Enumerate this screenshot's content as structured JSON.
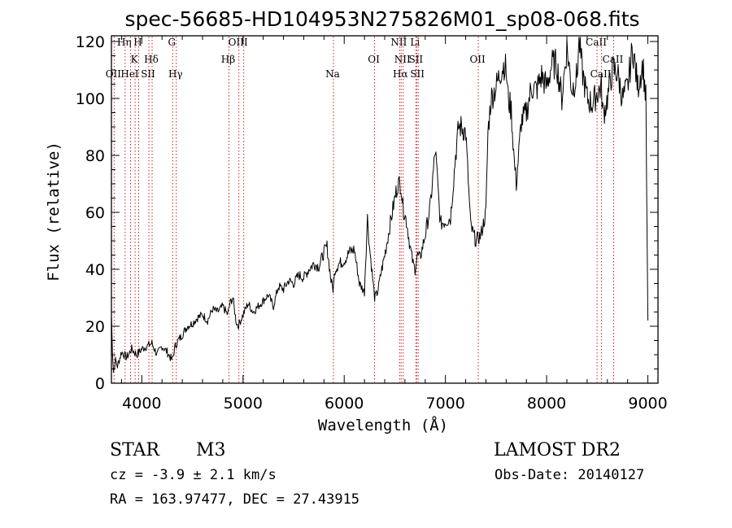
{
  "chart_data": {
    "type": "line",
    "title": "spec-56685-HD104953N275826M01_sp08-068.fits",
    "xlabel": "Wavelength (Å)",
    "ylabel": "Flux (relative)",
    "xlim": [
      3700,
      9100
    ],
    "ylim": [
      0,
      122
    ],
    "xticks": [
      4000,
      5000,
      6000,
      7000,
      8000,
      9000
    ],
    "yticks": [
      0,
      20,
      40,
      60,
      80,
      100,
      120
    ],
    "series": [
      {
        "name": "flux",
        "x": [
          3700,
          3710,
          3720,
          3740,
          3760,
          3800,
          3850,
          3900,
          3950,
          4000,
          4050,
          4100,
          4150,
          4200,
          4250,
          4300,
          4330,
          4360,
          4400,
          4450,
          4500,
          4550,
          4600,
          4650,
          4700,
          4750,
          4800,
          4850,
          4870,
          4900,
          4930,
          4950,
          5000,
          5050,
          5100,
          5150,
          5200,
          5250,
          5300,
          5350,
          5400,
          5450,
          5500,
          5550,
          5600,
          5650,
          5700,
          5750,
          5800,
          5830,
          5870,
          5890,
          5910,
          5950,
          6000,
          6050,
          6100,
          6150,
          6200,
          6210,
          6230,
          6250,
          6300,
          6330,
          6360,
          6400,
          6450,
          6500,
          6530,
          6560,
          6580,
          6620,
          6650,
          6680,
          6700,
          6720,
          6750,
          6800,
          6850,
          6900,
          6950,
          7000,
          7050,
          7100,
          7130,
          7160,
          7200,
          7250,
          7300,
          7350,
          7400,
          7420,
          7450,
          7500,
          7550,
          7580,
          7600,
          7620,
          7650,
          7680,
          7700,
          7750,
          7800,
          7850,
          7900,
          7950,
          8000,
          8050,
          8100,
          8150,
          8200,
          8250,
          8300,
          8320,
          8350,
          8400,
          8450,
          8500,
          8540,
          8560,
          8600,
          8650,
          8700,
          8750,
          8800,
          8850,
          8900,
          8950,
          8980,
          9000
        ],
        "values": [
          24,
          12,
          4,
          8,
          6,
          11,
          9,
          12,
          10,
          12,
          13,
          14,
          10,
          13,
          11,
          8,
          13,
          15,
          17,
          20,
          21,
          23,
          24,
          22,
          26,
          25,
          27,
          24,
          28,
          30,
          22,
          20,
          24,
          28,
          25,
          27,
          29,
          31,
          27,
          34,
          33,
          36,
          35,
          38,
          37,
          40,
          42,
          41,
          46,
          48,
          36,
          33,
          40,
          42,
          43,
          46,
          47,
          35,
          32,
          42,
          58,
          48,
          30,
          32,
          38,
          45,
          55,
          65,
          70,
          70,
          62,
          56,
          48,
          42,
          40,
          45,
          44,
          52,
          62,
          82,
          56,
          57,
          58,
          80,
          90,
          90,
          88,
          55,
          50,
          52,
          60,
          88,
          100,
          104,
          110,
          112,
          110,
          100,
          96,
          78,
          70,
          92,
          95,
          104,
          103,
          108,
          104,
          112,
          112,
          100,
          118,
          103,
          108,
          121,
          110,
          100,
          98,
          102,
          104,
          94,
          100,
          110,
          109,
          100,
          104,
          118,
          104,
          112,
          100,
          22
        ]
      }
    ],
    "spectral_lines": [
      {
        "label": "OII",
        "x": 3727
      },
      {
        "label": "Hη",
        "x": 3835
      },
      {
        "label": "HeI",
        "x": 3889
      },
      {
        "label": "K",
        "x": 3934
      },
      {
        "label": "H",
        "x": 3969
      },
      {
        "label": "SII",
        "x": 4070
      },
      {
        "label": "Hδ",
        "x": 4102
      },
      {
        "label": "G",
        "x": 4305
      },
      {
        "label": "Hγ",
        "x": 4341
      },
      {
        "label": "Hβ",
        "x": 4861
      },
      {
        "label": "OIII",
        "x": 4959
      },
      {
        "label": "OIII",
        "x": 5007
      },
      {
        "label": "Na",
        "x": 5893
      },
      {
        "label": "OI",
        "x": 6300
      },
      {
        "label": "NII",
        "x": 6548
      },
      {
        "label": "NII",
        "x": 6583
      },
      {
        "label": "Hα",
        "x": 6563
      },
      {
        "label": "Li",
        "x": 6708
      },
      {
        "label": "SII",
        "x": 6716
      },
      {
        "label": "SII",
        "x": 6731
      },
      {
        "label": "OII",
        "x": 7325
      },
      {
        "label": "CaII",
        "x": 8498
      },
      {
        "label": "CaII",
        "x": 8542
      },
      {
        "label": "CaII",
        "x": 8662
      }
    ]
  },
  "info": {
    "object_class": "STAR",
    "subclass": "M3",
    "survey": "LAMOST DR2",
    "redshift": "cz = -3.9 ± 2.1 km/s",
    "obs_date": "Obs-Date: 20140127",
    "coords": "RA = 163.97477, DEC =  27.43915"
  },
  "colors": {
    "line_marker": "#cc2222",
    "spectrum": "#000000"
  }
}
